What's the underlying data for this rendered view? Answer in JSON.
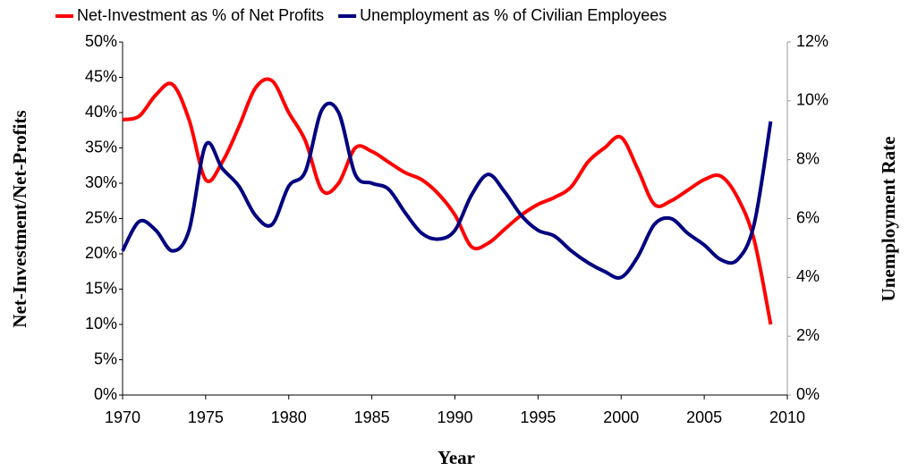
{
  "chart_data": {
    "type": "line",
    "x": [
      1970,
      1971,
      1972,
      1973,
      1974,
      1975,
      1976,
      1977,
      1978,
      1979,
      1980,
      1981,
      1982,
      1983,
      1984,
      1985,
      1986,
      1987,
      1988,
      1989,
      1990,
      1991,
      1992,
      1993,
      1994,
      1995,
      1996,
      1997,
      1998,
      1999,
      2000,
      2001,
      2002,
      2003,
      2004,
      2005,
      2006,
      2007,
      2008,
      2009
    ],
    "series": [
      {
        "name": "Net-Investment as % of Net Profits",
        "color": "#ff0000",
        "values": [
          39,
          39.5,
          42.5,
          44,
          39,
          30.5,
          33,
          38,
          43.5,
          44.5,
          40,
          36,
          29,
          30,
          35,
          34.5,
          33,
          31.5,
          30.5,
          28.5,
          25.5,
          21,
          21.5,
          23.5,
          25.5,
          27,
          28,
          29.5,
          33,
          35,
          36.5,
          32,
          27,
          27.5,
          29,
          30.5,
          31,
          28,
          22,
          10
        ]
      },
      {
        "name": "Unemployment as % of Civilian Employees",
        "color": "#000080",
        "axis": "y2",
        "values": [
          4.9,
          5.9,
          5.6,
          4.9,
          5.6,
          8.5,
          7.7,
          7.1,
          6.1,
          5.8,
          7.1,
          7.6,
          9.7,
          9.6,
          7.5,
          7.2,
          7.0,
          6.2,
          5.5,
          5.3,
          5.6,
          6.8,
          7.5,
          6.9,
          6.1,
          5.6,
          5.4,
          4.9,
          4.5,
          4.2,
          4.0,
          4.7,
          5.8,
          6.0,
          5.5,
          5.1,
          4.6,
          4.6,
          5.8,
          9.3
        ]
      }
    ],
    "xlabel": "Year",
    "ylabel": "Net-Investment/Net-Profits",
    "y2label": "Unemployment Rate",
    "xlim": [
      1970,
      2010
    ],
    "xticks": [
      1970,
      1975,
      1980,
      1985,
      1990,
      1995,
      2000,
      2005,
      2010
    ],
    "ylim": [
      0,
      50
    ],
    "yticks": [
      {
        "value": 0,
        "label": "0%"
      },
      {
        "value": 5,
        "label": "5%"
      },
      {
        "value": 10,
        "label": "10%"
      },
      {
        "value": 15,
        "label": "15%"
      },
      {
        "value": 20,
        "label": "20%"
      },
      {
        "value": 25,
        "label": "25%"
      },
      {
        "value": 30,
        "label": "30%"
      },
      {
        "value": 35,
        "label": "35%"
      },
      {
        "value": 40,
        "label": "40%"
      },
      {
        "value": 45,
        "label": "45%"
      },
      {
        "value": 50,
        "label": "50%"
      }
    ],
    "y2lim": [
      0,
      12
    ],
    "y2ticks": [
      {
        "value": 0,
        "label": "0%"
      },
      {
        "value": 2,
        "label": "2%"
      },
      {
        "value": 4,
        "label": "4%"
      },
      {
        "value": 6,
        "label": "6%"
      },
      {
        "value": 8,
        "label": "8%"
      },
      {
        "value": 10,
        "label": "10%"
      },
      {
        "value": 12,
        "label": "12%"
      }
    ],
    "legend": "top",
    "grid": false
  }
}
